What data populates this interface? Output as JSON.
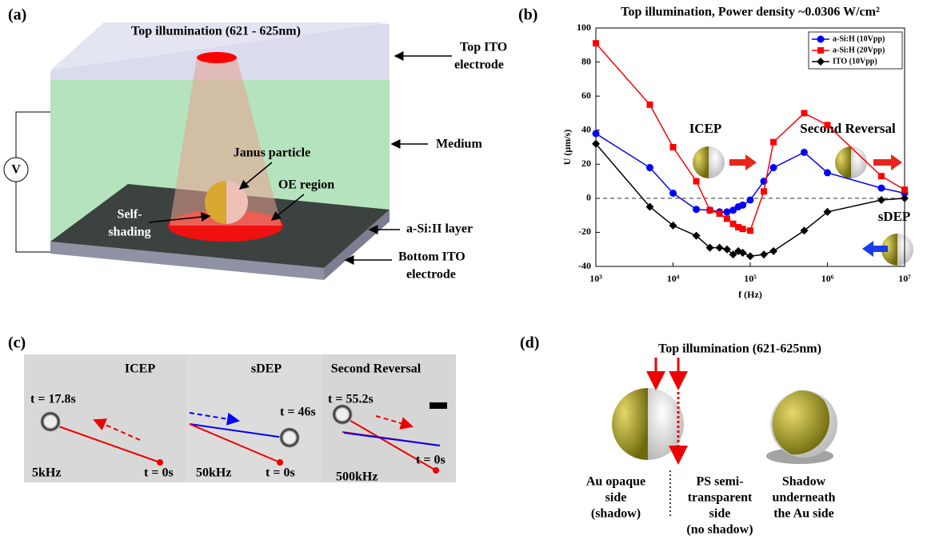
{
  "panel_a": {
    "label": "(a)",
    "illumination": "Top illumination (621 - 625nm)",
    "top_ito": [
      "Top ITO",
      "electrode"
    ],
    "medium": "Medium",
    "janus": "Janus particle",
    "oe_region": "OE region",
    "self_shading": [
      "Self-",
      "shading"
    ],
    "layer": "a-Si:II layer",
    "bottom_ito": [
      "Bottom ITO",
      "electrode"
    ],
    "voltage": "V"
  },
  "panel_b": {
    "label": "(b)"
  },
  "chart_data": {
    "type": "line",
    "title": "Top illumination, Power density ~0.0306 W/cm²",
    "x_label": "f (Hz)",
    "y_label": "U (μm/s)",
    "x": [
      1000,
      5000,
      10000,
      20000,
      30000,
      40000,
      50000,
      60000,
      70000,
      80000,
      100000,
      150000,
      200000,
      500000,
      1000000,
      5000000,
      10000000
    ],
    "series": [
      {
        "name": "a-Si:H (10Vpp)",
        "color": "#0000ff",
        "marker": "circle",
        "values": [
          38,
          18,
          3,
          -6.5,
          -7,
          -8,
          -8,
          -7,
          -5,
          -4,
          -1,
          10,
          18,
          27,
          15,
          6,
          3
        ]
      },
      {
        "name": "a-Si:H (20Vpp)",
        "color": "#ff0000",
        "marker": "square",
        "values": [
          91,
          55,
          30,
          10,
          -7,
          -9,
          -12,
          -15,
          -17,
          -18,
          -19,
          4,
          33,
          50,
          43,
          13,
          5
        ]
      },
      {
        "name": "ITO (10Vpp)",
        "color": "#000000",
        "marker": "diamond",
        "values": [
          32,
          -5,
          -16,
          -22,
          -29,
          -29,
          -30,
          -33,
          -31,
          -32,
          -34,
          -33,
          -31,
          -19,
          -8,
          -1,
          0
        ]
      }
    ],
    "xscale": "log",
    "xlim": [
      1000,
      10000000
    ],
    "xticks": [
      {
        "value": 1000,
        "label": "10³"
      },
      {
        "value": 10000,
        "label": "10⁴"
      },
      {
        "value": 100000,
        "label": "10⁵"
      },
      {
        "value": 1000000,
        "label": "10⁶"
      },
      {
        "value": 10000000,
        "label": "10⁷"
      }
    ],
    "ylim": [
      -40,
      100
    ],
    "yticks": [
      -40,
      -20,
      0,
      20,
      40,
      60,
      80,
      100
    ],
    "reference_line": 0,
    "legend": "upper right",
    "grid": false,
    "annotations": [
      "ICEP",
      "Second Reversal",
      "sDEP"
    ]
  },
  "panel_c": {
    "label": "(c)",
    "frames": [
      {
        "title": "ICEP",
        "t_start": "t = 17.8s",
        "freq": "5kHz",
        "t_end": "t = 0s"
      },
      {
        "title": "sDEP",
        "t_start": "t = 46s",
        "freq": "50kHz",
        "t_end": "t = 0s"
      },
      {
        "title": "Second Reversal",
        "t_start": "t = 55.2s",
        "freq": "500kHz",
        "t_end": "t = 0s"
      }
    ]
  },
  "panel_d": {
    "label": "(d)",
    "illumination": "Top illumination (621-625nm)",
    "au_side": [
      "Au opaque",
      "side",
      "(shadow)"
    ],
    "ps_side": [
      "PS semi-",
      "transparent",
      "side",
      "(no shadow)"
    ],
    "shadow": [
      "Shadow",
      "underneath",
      "the Au side"
    ]
  }
}
